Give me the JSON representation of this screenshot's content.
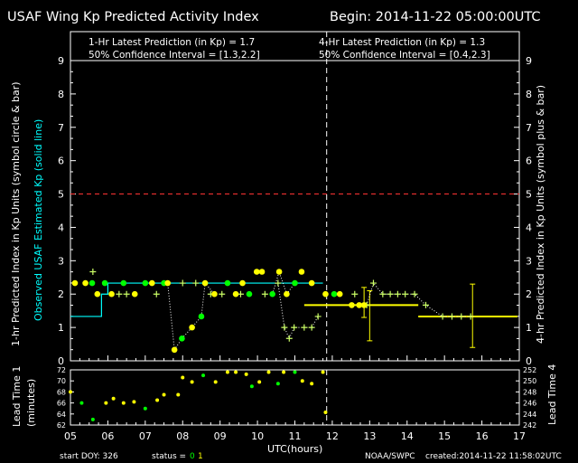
{
  "header": {
    "title": "USAF Wing Kp Predicted Activity Index",
    "begin": "Begin: 2014-11-22 05:00:00UTC"
  },
  "legend": {
    "one_hr_prediction": "1-Hr Latest Prediction (in Kp) = 1.7",
    "one_hr_ci": "50% Confidence Interval   = [1.3,2.2]",
    "four_hr_prediction": "4-Hr Latest Prediction (in Kp) = 1.3",
    "four_hr_ci": "50% Confidence Interval   = [0.4,2.3]"
  },
  "axes": {
    "left_label_white": "1-hr Predicted Index in Kp Units (symbol circle & bar)",
    "left_label_cyan": "Observed USAF Estimated Kp (solid line)",
    "right_label": "4-hr Predicted Index in Kp Units (symbol plus & bar)",
    "lead_left_label_1": "Lead Time 1",
    "lead_left_label_2": "(minutes)",
    "lead_right_label": "Lead Time 4",
    "x_label": "UTC(hours)"
  },
  "footer": {
    "start_doy": "start DOY:  326",
    "status_label": "status =",
    "status_0": "0",
    "status_1": "1",
    "source": "NOAA/SWPC",
    "created": "created:2014-11-22 11:58:02UTC"
  },
  "colors": {
    "one_hr_green": "#00ff00",
    "one_hr_yellow": "#ffff00",
    "four_hr": "#ccff66",
    "observed": "#00ffff",
    "threshold": "#ff3333",
    "now_line": "#ffffff"
  },
  "chart_data": [
    {
      "type": "scatter",
      "title": "USAF Wing Kp Predicted Activity Index",
      "xlabel": "UTC(hours)",
      "ylabel": "1-hr Predicted Index in Kp Units (symbol circle & bar)",
      "y2label": "4-hr Predicted Index in Kp Units (symbol plus & bar)",
      "xlim": [
        5,
        17
      ],
      "ylim": [
        0,
        9
      ],
      "x_ticks": [
        "05",
        "06",
        "07",
        "08",
        "09",
        "10",
        "11",
        "12",
        "13",
        "14",
        "15",
        "16",
        "17"
      ],
      "y_ticks": [
        "0",
        "1",
        "2",
        "3",
        "4",
        "5",
        "6",
        "7",
        "8",
        "9"
      ],
      "threshold_line": 5,
      "now_line_x": 11.85,
      "series": [
        {
          "name": "Observed USAF Estimated Kp",
          "kind": "step",
          "points": [
            [
              5.0,
              1.33
            ],
            [
              5.83,
              1.33
            ],
            [
              5.83,
              2.0
            ],
            [
              6.0,
              2.0
            ],
            [
              6.0,
              2.33
            ],
            [
              11.75,
              2.33
            ]
          ]
        },
        {
          "name": "1-hr Predicted Index",
          "kind": "circle",
          "points": [
            [
              5.12,
              2.33,
              "y"
            ],
            [
              5.4,
              2.33,
              "y"
            ],
            [
              5.58,
              2.33,
              "g"
            ],
            [
              5.72,
              2.0,
              "y"
            ],
            [
              5.92,
              2.33,
              "g"
            ],
            [
              6.1,
              2.0,
              "y"
            ],
            [
              6.42,
              2.33,
              "g"
            ],
            [
              6.72,
              2.0,
              "y"
            ],
            [
              7.0,
              2.33,
              "g"
            ],
            [
              7.18,
              2.33,
              "y"
            ],
            [
              7.5,
              2.33,
              "g"
            ],
            [
              7.6,
              2.33,
              "y"
            ],
            [
              7.78,
              0.33,
              "y"
            ],
            [
              7.98,
              0.67,
              "g"
            ],
            [
              8.25,
              1.0,
              "y"
            ],
            [
              8.5,
              1.33,
              "g"
            ],
            [
              8.6,
              2.33,
              "y"
            ],
            [
              8.85,
              2.0,
              "y"
            ],
            [
              9.2,
              2.33,
              "g"
            ],
            [
              9.42,
              2.0,
              "y"
            ],
            [
              9.6,
              2.33,
              "y"
            ],
            [
              9.78,
              2.0,
              "g"
            ],
            [
              9.98,
              2.67,
              "y"
            ],
            [
              10.12,
              2.67,
              "y"
            ],
            [
              10.4,
              2.0,
              "g"
            ],
            [
              10.58,
              2.67,
              "y"
            ],
            [
              10.78,
              2.0,
              "y"
            ],
            [
              11.0,
              2.33,
              "g"
            ],
            [
              11.18,
              2.67,
              "y"
            ],
            [
              11.45,
              2.33,
              "y"
            ],
            [
              11.82,
              2.0,
              "y"
            ],
            [
              12.05,
              2.0,
              "g"
            ],
            [
              12.2,
              2.0,
              "y"
            ],
            [
              12.52,
              1.67,
              "y"
            ],
            [
              12.72,
              1.67,
              "y"
            ],
            [
              12.85,
              1.67,
              "y"
            ]
          ],
          "bars": [
            [
              12.85,
              1.3,
              2.2
            ]
          ],
          "dotted_segments": [
            [
              7.5,
              7.78
            ],
            [
              7.78,
              8.85
            ],
            [
              10.4,
              10.78
            ],
            [
              10.78,
              11.0
            ]
          ]
        },
        {
          "name": "4-hr Predicted Index",
          "kind": "plus",
          "points": [
            [
              5.6,
              2.67
            ],
            [
              6.3,
              2.0
            ],
            [
              6.5,
              2.0
            ],
            [
              7.3,
              2.0
            ],
            [
              8.0,
              2.33
            ],
            [
              8.35,
              2.33
            ],
            [
              8.75,
              2.0
            ],
            [
              9.05,
              2.0
            ],
            [
              9.55,
              2.0
            ],
            [
              10.2,
              2.0
            ],
            [
              10.55,
              2.33
            ],
            [
              10.72,
              1.0
            ],
            [
              10.85,
              0.67
            ],
            [
              10.98,
              1.0
            ],
            [
              11.25,
              1.0
            ],
            [
              11.45,
              1.0
            ],
            [
              11.62,
              1.33
            ],
            [
              12.6,
              2.0
            ],
            [
              12.92,
              1.67
            ],
            [
              13.1,
              2.33
            ],
            [
              13.35,
              2.0
            ],
            [
              13.55,
              2.0
            ],
            [
              13.75,
              2.0
            ],
            [
              13.95,
              2.0
            ],
            [
              14.2,
              2.0
            ],
            [
              14.5,
              1.67
            ],
            [
              14.95,
              1.33
            ],
            [
              15.2,
              1.33
            ],
            [
              15.45,
              1.33
            ],
            [
              15.7,
              1.33
            ]
          ],
          "hbars": [
            [
              11.25,
              14.3,
              1.67
            ],
            [
              14.3,
              16.95,
              1.33
            ]
          ],
          "bars": [
            [
              13.0,
              1.67,
              0.6,
              2.1
            ],
            [
              15.75,
              1.33,
              0.4,
              2.3
            ]
          ]
        }
      ]
    },
    {
      "type": "scatter",
      "title": "Lead Time",
      "ylabel": "Lead Time 1 (minutes)",
      "y2label": "Lead Time 4",
      "xlim": [
        5,
        17
      ],
      "ylim": [
        62,
        72
      ],
      "y_ticks": [
        "62",
        "64",
        "66",
        "68",
        "70",
        "72"
      ],
      "y2lim": [
        242,
        252
      ],
      "y2_ticks": [
        "242",
        "244",
        "246",
        "248",
        "250",
        "252"
      ],
      "points": [
        [
          5.0,
          68.0,
          "y"
        ],
        [
          5.3,
          66.0,
          "g"
        ],
        [
          5.6,
          63.0,
          "g"
        ],
        [
          5.95,
          66.0,
          "y"
        ],
        [
          6.15,
          66.8,
          "y"
        ],
        [
          6.42,
          66.0,
          "y"
        ],
        [
          6.7,
          66.2,
          "y"
        ],
        [
          7.0,
          65.0,
          "g"
        ],
        [
          7.32,
          66.5,
          "y"
        ],
        [
          7.5,
          67.5,
          "y"
        ],
        [
          7.88,
          67.5,
          "y"
        ],
        [
          8.0,
          70.6,
          "y"
        ],
        [
          8.25,
          69.8,
          "y"
        ],
        [
          8.55,
          71.0,
          "g"
        ],
        [
          8.88,
          69.8,
          "y"
        ],
        [
          9.2,
          71.6,
          "y"
        ],
        [
          9.42,
          71.6,
          "y"
        ],
        [
          9.7,
          71.2,
          "y"
        ],
        [
          9.85,
          69.0,
          "g"
        ],
        [
          10.05,
          69.8,
          "y"
        ],
        [
          10.3,
          71.6,
          "y"
        ],
        [
          10.55,
          69.5,
          "g"
        ],
        [
          10.7,
          71.6,
          "y"
        ],
        [
          11.0,
          71.6,
          "g"
        ],
        [
          11.2,
          70.0,
          "y"
        ],
        [
          11.45,
          69.5,
          "y"
        ],
        [
          11.75,
          71.6,
          "y"
        ],
        [
          11.82,
          64.3,
          "y"
        ]
      ]
    }
  ]
}
